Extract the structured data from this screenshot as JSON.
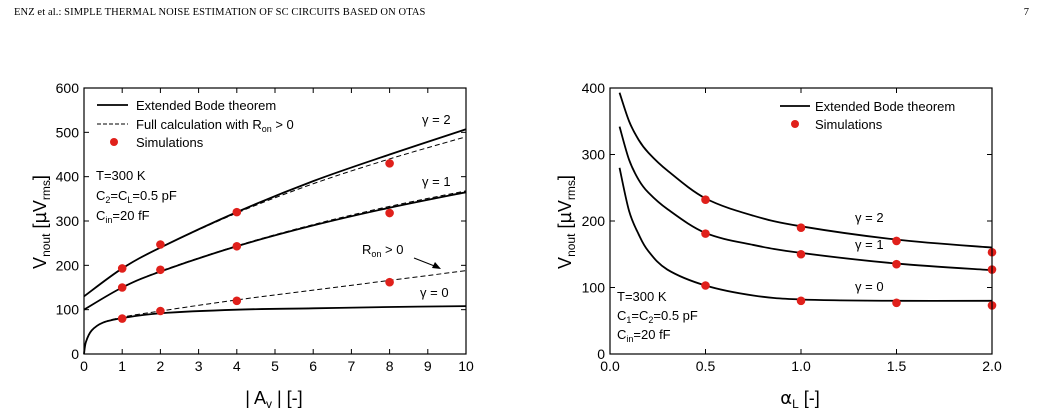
{
  "header": {
    "left": "ENZ et al.: SIMPLE THERMAL NOISE ESTIMATION OF SC CIRCUITS BASED ON OTAS",
    "page_number": "7"
  },
  "chart_data": [
    {
      "type": "line",
      "xlabel": "| A_v | [-]",
      "ylabel": "V_nout [µV_rms]",
      "xlim": [
        0,
        10
      ],
      "ylim": [
        0,
        600
      ],
      "xticks": [
        "0",
        "1",
        "2",
        "3",
        "4",
        "5",
        "6",
        "7",
        "8",
        "9",
        "10"
      ],
      "yticks": [
        "0",
        "100",
        "200",
        "300",
        "400",
        "500",
        "600"
      ],
      "legend": {
        "placement": "top-left",
        "entries": [
          "Extended Bode theorem",
          "Full calculation with R_on > 0",
          "Simulations"
        ]
      },
      "conditions": [
        "T=300 K",
        "C_2=C_L=0.5 pF",
        "C_in=20 fF"
      ],
      "annotations": [
        "γ = 2",
        "γ = 1",
        "γ = 0",
        "R_on > 0"
      ],
      "series": [
        {
          "label": "γ = 2",
          "style": "solid",
          "x": [
            0,
            1,
            2,
            4,
            6,
            8,
            10
          ],
          "y": [
            130,
            193,
            240,
            320,
            390,
            450,
            507
          ]
        },
        {
          "label": "γ = 2",
          "style": "dashed",
          "x": [
            0,
            1,
            2,
            4,
            6,
            8,
            10
          ],
          "y": [
            130,
            193,
            240,
            318,
            384,
            440,
            490
          ]
        },
        {
          "label": "γ = 1",
          "style": "solid",
          "x": [
            0,
            1,
            2,
            4,
            6,
            8,
            10
          ],
          "y": [
            100,
            150,
            186,
            243,
            290,
            330,
            365
          ]
        },
        {
          "label": "γ = 1",
          "style": "dashed",
          "x": [
            0,
            1,
            2,
            4,
            6,
            8,
            10
          ],
          "y": [
            100,
            150,
            187,
            244,
            292,
            333,
            368
          ]
        },
        {
          "label": "γ = 0",
          "style": "solid",
          "x": [
            0,
            0.05,
            0.2,
            0.5,
            1,
            2,
            4,
            6,
            8,
            10
          ],
          "y": [
            0,
            27,
            53,
            71,
            81,
            92,
            100,
            103,
            106,
            108
          ]
        },
        {
          "label": "R_on > 0",
          "style": "dashed",
          "x": [
            0,
            0.05,
            0.2,
            0.5,
            1,
            2,
            4,
            6,
            8,
            10
          ],
          "y": [
            0,
            27,
            53,
            71,
            83,
            97,
            122,
            144,
            166,
            188
          ]
        },
        {
          "label": "Simulations",
          "style": "markers",
          "color": "#e0201b",
          "x": [
            1,
            2,
            4,
            8,
            1,
            2,
            4,
            8,
            1,
            2,
            4,
            8
          ],
          "y": [
            193,
            247,
            320,
            430,
            150,
            190,
            243,
            318,
            80,
            97,
            120,
            162
          ]
        }
      ]
    },
    {
      "type": "line",
      "xlabel": "α_L [-]",
      "ylabel": "V_nout [µV_rms]",
      "xlim": [
        0,
        2
      ],
      "ylim": [
        0,
        400
      ],
      "xticks": [
        "0.0",
        "0.5",
        "1.0",
        "1.5",
        "2.0"
      ],
      "yticks": [
        "0",
        "100",
        "200",
        "300",
        "400"
      ],
      "legend": {
        "placement": "top-right",
        "entries": [
          "Extended Bode theorem",
          "Simulations"
        ]
      },
      "conditions": [
        "T=300 K",
        "C_1=C_2=0.5 pF",
        "C_in=20 fF"
      ],
      "annotations": [
        "γ = 2",
        "γ = 1",
        "γ = 0"
      ],
      "series": [
        {
          "label": "γ = 2",
          "style": "solid",
          "x": [
            0.05,
            0.1,
            0.15,
            0.2,
            0.3,
            0.5,
            0.75,
            1,
            1.5,
            2
          ],
          "y": [
            393,
            350,
            322,
            303,
            276,
            234,
            208,
            192,
            172,
            160
          ]
        },
        {
          "label": "γ = 1",
          "style": "solid",
          "x": [
            0.05,
            0.1,
            0.15,
            0.2,
            0.3,
            0.5,
            0.75,
            1,
            1.5,
            2
          ],
          "y": [
            342,
            292,
            262,
            243,
            218,
            182,
            164,
            152,
            136,
            126
          ]
        },
        {
          "label": "γ = 0",
          "style": "solid",
          "x": [
            0.05,
            0.1,
            0.15,
            0.2,
            0.3,
            0.5,
            0.75,
            1,
            1.5,
            2
          ],
          "y": [
            280,
            215,
            180,
            155,
            127,
            103,
            88,
            82,
            80,
            80
          ]
        },
        {
          "label": "Simulations",
          "style": "markers",
          "color": "#e0201b",
          "x": [
            0.5,
            1,
            1.5,
            2,
            0.5,
            1,
            1.5,
            2,
            0.5,
            1,
            1.5,
            2
          ],
          "y": [
            232,
            190,
            170,
            153,
            181,
            150,
            135,
            127,
            103,
            80,
            77,
            73
          ]
        }
      ]
    }
  ]
}
